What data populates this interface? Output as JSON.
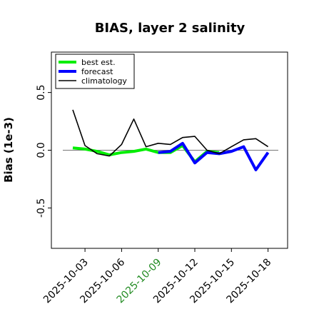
{
  "chart_data": {
    "type": "line",
    "title": "BIAS, layer 2 salinity",
    "xlabel": "",
    "ylabel": "Bias (1e-3)",
    "x_start": "2025-10-02",
    "x": [
      "2025-10-02",
      "2025-10-03",
      "2025-10-04",
      "2025-10-05",
      "2025-10-06",
      "2025-10-07",
      "2025-10-08",
      "2025-10-09",
      "2025-10-10",
      "2025-10-11",
      "2025-10-12",
      "2025-10-13",
      "2025-10-14",
      "2025-10-15",
      "2025-10-16",
      "2025-10-17",
      "2025-10-18"
    ],
    "x_ticks": [
      {
        "label": "2025-10-03",
        "color": "#000000"
      },
      {
        "label": "2025-10-06",
        "color": "#000000"
      },
      {
        "label": "2025-10-09",
        "color": "#228b22"
      },
      {
        "label": "2025-10-12",
        "color": "#000000"
      },
      {
        "label": "2025-10-15",
        "color": "#000000"
      },
      {
        "label": "2025-10-18",
        "color": "#000000"
      }
    ],
    "y_ticks": [
      "0.5",
      "0.0",
      "-0.5"
    ],
    "ylim": [
      -0.85,
      0.85
    ],
    "zero_line": true,
    "grid": false,
    "legend_position": "top-left",
    "series": [
      {
        "name": "best est.",
        "color": "#00ee00",
        "values": [
          0.02,
          0.01,
          -0.01,
          -0.04,
          -0.02,
          -0.01,
          0.01,
          -0.02,
          -0.02,
          0.04,
          -0.1,
          -0.01,
          -0.02,
          null,
          null,
          null,
          null
        ]
      },
      {
        "name": "forecast",
        "color": "#0000ff",
        "values": [
          null,
          null,
          null,
          null,
          null,
          null,
          null,
          -0.02,
          -0.01,
          0.06,
          -0.11,
          -0.02,
          -0.03,
          -0.01,
          0.03,
          -0.17,
          -0.02
        ]
      },
      {
        "name": "climatology",
        "color": "#000000",
        "values": [
          0.35,
          0.04,
          -0.03,
          -0.05,
          0.05,
          0.27,
          0.03,
          0.06,
          0.05,
          0.11,
          0.12,
          0.0,
          -0.03,
          0.03,
          0.09,
          0.1,
          0.03
        ]
      }
    ]
  }
}
